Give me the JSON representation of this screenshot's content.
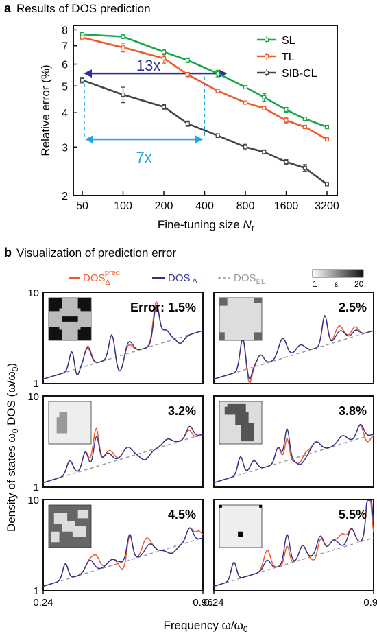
{
  "panel_a": {
    "letter": "a",
    "title": "Results of DOS prediction",
    "ylabel": "Relative error (%)",
    "xlabel_main": "Fine-tuning size ",
    "xlabel_var": "N",
    "xlabel_sub": "t",
    "yticks": [
      "2",
      "3",
      "4",
      "5",
      "6",
      "7",
      "8"
    ],
    "xticks": [
      "50",
      "100",
      "200",
      "400",
      "800",
      "1600",
      "3200"
    ],
    "annot_13x": "13x",
    "annot_7x": "7x",
    "colors": {
      "SL": "#1aa64a",
      "TL": "#ef5a2a",
      "SIB-CL": "#444444",
      "arrow13": "#2e3192",
      "arrow7": "#1fa7e0"
    }
  },
  "panel_b": {
    "letter": "b",
    "title": "Visualization of prediction error",
    "legend": {
      "pred_base": "DOS",
      "pred_sub": "Δ",
      "pred_sup": "pred",
      "true_base": "DOS",
      "true_sub": "Δ",
      "el_base": "DOS",
      "el_sub": "EL"
    },
    "colorbar": {
      "min": "1",
      "label": "ε",
      "max": "20"
    },
    "ylabel_main": "Density of states ω",
    "ylabel_sub": "0",
    "ylabel_rest": " DOS (ω/ω",
    "ylabel_sub2": "0",
    "ylabel_end": ")",
    "xlabel_main": "Frequency ω/ω",
    "xlabel_sub": "0",
    "xtick_left": "0.24",
    "xtick_right": "0.96",
    "ytick_top": "10",
    "ytick_bottom": "1",
    "error_prefix": "Error: ",
    "colors": {
      "pred": "#ef5a2a",
      "true": "#2e3192",
      "el": "#999999"
    }
  },
  "chart_data": [
    {
      "type": "line",
      "title": "Results of DOS prediction",
      "xlabel": "Fine-tuning size Nt",
      "ylabel": "Relative error (%)",
      "xscale": "log",
      "yscale": "log",
      "x": [
        50,
        100,
        200,
        300,
        500,
        800,
        1100,
        1600,
        2200,
        3200
      ],
      "ylim": [
        2,
        8.3
      ],
      "legend_position": "top-right",
      "series": [
        {
          "name": "SL",
          "values": [
            7.7,
            7.55,
            6.65,
            6.2,
            5.55,
            4.95,
            4.55,
            4.1,
            3.8,
            3.55
          ],
          "err": [
            0.1,
            0.12,
            0.15,
            0.12,
            0.15,
            0.05,
            0.15,
            0.08,
            0.05,
            0.05
          ]
        },
        {
          "name": "TL",
          "values": [
            7.5,
            6.9,
            6.3,
            5.5,
            4.8,
            4.35,
            4.15,
            3.75,
            3.55,
            3.2
          ],
          "err": [
            0.1,
            0.25,
            0.25,
            0.1,
            0.05,
            0.05,
            0.05,
            0.08,
            0.05,
            0.04
          ]
        },
        {
          "name": "SIB-CL",
          "values": [
            5.25,
            4.65,
            4.2,
            3.65,
            3.3,
            3.0,
            2.88,
            2.65,
            2.52,
            2.2
          ],
          "err": [
            0.12,
            0.3,
            0.08,
            0.08,
            0.05,
            0.07,
            0.05,
            0.05,
            0.07,
            0.03
          ]
        }
      ],
      "annotations": [
        {
          "text": "13x",
          "from_x": 50,
          "to_x": 600,
          "y": 5.55
        },
        {
          "text": "7x",
          "from_x": 50,
          "to_x": 390,
          "y": 3.2
        }
      ]
    },
    {
      "type": "line",
      "title": "Visualization of prediction error",
      "xlabel": "Frequency ω/ω0",
      "ylabel": "Density of states ω0 DOS(ω/ω0)",
      "xlim": [
        0.24,
        0.96
      ],
      "yscale": "log",
      "ylim": [
        1,
        10
      ],
      "panels": [
        {
          "error": "1.5%",
          "el_end": 3.8,
          "peaks": [
            [
              0.37,
              1.0,
              0.012
            ],
            [
              0.39,
              -0.5,
              0.01
            ],
            [
              0.44,
              0.9,
              0.015
            ],
            [
              0.55,
              1.3,
              0.013
            ],
            [
              0.59,
              -1.0,
              0.02
            ],
            [
              0.62,
              0.8,
              0.02
            ],
            [
              0.75,
              1.9,
              0.013
            ],
            [
              0.79,
              0.6,
              0.02
            ],
            [
              0.86,
              -0.3,
              0.015
            ]
          ],
          "mismatch": [
            [
              0.45,
              0.05
            ],
            [
              0.74,
              0.12
            ],
            [
              0.63,
              -0.08
            ]
          ]
        },
        {
          "error": "2.5%",
          "el_end": 3.8,
          "peaks": [
            [
              0.37,
              1.6,
              0.012
            ],
            [
              0.4,
              -0.6,
              0.01
            ],
            [
              0.45,
              0.5,
              0.015
            ],
            [
              0.55,
              1.0,
              0.018
            ],
            [
              0.63,
              0.4,
              0.02
            ],
            [
              0.74,
              1.5,
              0.012
            ],
            [
              0.81,
              0.5,
              0.02
            ],
            [
              0.88,
              0.3,
              0.015
            ]
          ],
          "mismatch": [
            [
              0.4,
              -0.1
            ],
            [
              0.8,
              0.15
            ],
            [
              0.87,
              0.1
            ]
          ]
        },
        {
          "error": "3.2%",
          "el_end": 3.8,
          "peaks": [
            [
              0.36,
              0.7,
              0.014
            ],
            [
              0.43,
              0.9,
              0.013
            ],
            [
              0.48,
              1.5,
              0.012
            ],
            [
              0.53,
              0.5,
              0.02
            ],
            [
              0.62,
              0.5,
              0.02
            ],
            [
              0.7,
              -0.4,
              0.02
            ],
            [
              0.8,
              0.3,
              0.02
            ],
            [
              0.9,
              0.6,
              0.015
            ]
          ],
          "mismatch": [
            [
              0.47,
              0.25
            ],
            [
              0.55,
              0.1
            ],
            [
              0.91,
              -0.12
            ]
          ]
        },
        {
          "error": "3.8%",
          "el_end": 3.8,
          "peaks": [
            [
              0.36,
              0.9,
              0.012
            ],
            [
              0.42,
              0.5,
              0.015
            ],
            [
              0.53,
              0.8,
              0.013
            ],
            [
              0.57,
              1.6,
              0.011
            ],
            [
              0.63,
              -0.4,
              0.02
            ],
            [
              0.7,
              0.5,
              0.02
            ],
            [
              0.82,
              0.4,
              0.02
            ],
            [
              0.9,
              0.7,
              0.015
            ]
          ],
          "mismatch": [
            [
              0.57,
              -0.25
            ],
            [
              0.65,
              0.15
            ],
            [
              0.93,
              -0.18
            ]
          ]
        },
        {
          "error": "4.5%",
          "el_end": 3.8,
          "peaks": [
            [
              0.34,
              0.8,
              0.012
            ],
            [
              0.45,
              0.6,
              0.018
            ],
            [
              0.55,
              0.3,
              0.02
            ],
            [
              0.63,
              1.3,
              0.012
            ],
            [
              0.72,
              0.5,
              0.02
            ],
            [
              0.82,
              -0.3,
              0.02
            ],
            [
              0.9,
              0.7,
              0.015
            ]
          ],
          "mismatch": [
            [
              0.48,
              0.3
            ],
            [
              0.6,
              -0.2
            ],
            [
              0.7,
              0.25
            ],
            [
              0.94,
              0.2
            ]
          ]
        },
        {
          "error": "5.5%",
          "el_end": 3.8,
          "peaks": [
            [
              0.33,
              0.9,
              0.012
            ],
            [
              0.48,
              0.5,
              0.015
            ],
            [
              0.57,
              1.5,
              0.012
            ],
            [
              0.64,
              0.7,
              0.015
            ],
            [
              0.72,
              0.9,
              0.015
            ],
            [
              0.78,
              0.5,
              0.02
            ],
            [
              0.86,
              0.8,
              0.015
            ],
            [
              0.94,
              3.0,
              0.012
            ]
          ],
          "mismatch": [
            [
              0.48,
              0.25
            ],
            [
              0.57,
              -0.3
            ],
            [
              0.7,
              -0.2
            ],
            [
              0.82,
              0.3
            ],
            [
              0.95,
              -0.3
            ]
          ]
        }
      ]
    }
  ]
}
